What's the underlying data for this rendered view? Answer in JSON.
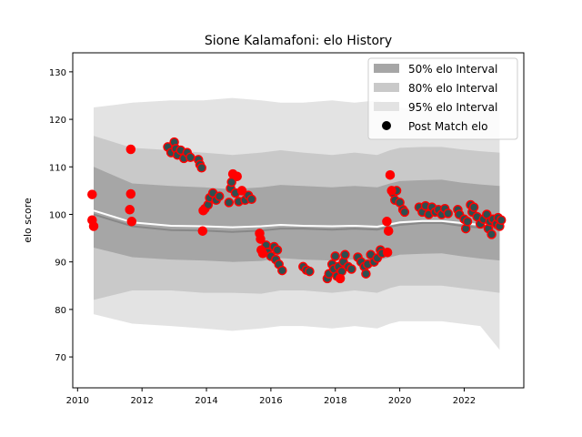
{
  "chart_data": {
    "type": "line",
    "title": "Sione Kalamafoni: elo History",
    "xlabel": "",
    "ylabel": "elo score",
    "xlim": [
      2009.85,
      2023.85
    ],
    "ylim": [
      63.5,
      134
    ],
    "xticks": [
      2010,
      2012,
      2014,
      2016,
      2018,
      2020,
      2022
    ],
    "yticks": [
      70,
      80,
      90,
      100,
      110,
      120,
      130
    ],
    "legend": {
      "position": "top-right",
      "entries": [
        "50% elo Interval",
        "80% elo Interval",
        "95% elo Interval",
        "Post Match elo"
      ]
    },
    "colors": {
      "band50": "#a6a6a6",
      "band80": "#c9c9c9",
      "band95": "#e3e3e3",
      "mean": "#ffffff",
      "median": "#888888",
      "marker_edge": "#ff0000",
      "marker_face": "#2f4f4f"
    },
    "x": [
      2010.5,
      2011.7,
      2012.9,
      2013.9,
      2014.8,
      2015.7,
      2016.3,
      2017.0,
      2017.9,
      2018.6,
      2019.3,
      2019.7,
      2020.0,
      2020.7,
      2021.3,
      2021.9,
      2022.5,
      2023.1
    ],
    "series": [
      {
        "values": [
          100.8,
          98.3,
          97.6,
          97.5,
          97.3,
          97.5,
          97.8,
          97.6,
          97.5,
          97.6,
          97.4,
          97.9,
          98.3,
          98.6,
          98.6,
          98.2,
          97.8,
          97.6
        ]
      },
      {
        "values": [
          100.0,
          97.5,
          96.7,
          96.6,
          96.3,
          96.6,
          97.0,
          97.0,
          96.8,
          97.0,
          96.8,
          97.4,
          97.8,
          98.2,
          98.2,
          97.6,
          97.2,
          96.9
        ]
      },
      {
        "lower": [
          93.0,
          91.0,
          90.5,
          90.3,
          90.0,
          90.2,
          90.8,
          90.5,
          90.3,
          90.5,
          90.3,
          91.0,
          91.5,
          91.7,
          91.8,
          91.2,
          90.7,
          90.3
        ],
        "upper": [
          110.0,
          106.5,
          106.0,
          105.7,
          105.3,
          105.7,
          106.2,
          106.0,
          105.7,
          106.0,
          105.7,
          106.5,
          107.0,
          107.2,
          107.3,
          106.7,
          106.3,
          106.0
        ]
      },
      {
        "lower": [
          82.0,
          84.0,
          84.0,
          83.5,
          83.5,
          83.3,
          84.0,
          84.0,
          83.5,
          84.0,
          83.5,
          84.5,
          85.0,
          85.0,
          85.0,
          84.5,
          84.0,
          83.5
        ],
        "upper": [
          116.5,
          114.0,
          113.5,
          113.0,
          112.5,
          113.0,
          113.5,
          113.0,
          112.5,
          113.0,
          112.5,
          113.5,
          114.0,
          114.2,
          114.2,
          113.7,
          113.3,
          113.0
        ]
      },
      {
        "lower": [
          79.0,
          77.0,
          76.5,
          76.0,
          75.5,
          76.0,
          76.5,
          76.5,
          76.0,
          76.5,
          76.0,
          77.0,
          77.5,
          77.5,
          77.5,
          77.0,
          76.5,
          71.5
        ],
        "upper": [
          122.5,
          123.5,
          124.0,
          124.0,
          124.5,
          124.0,
          123.5,
          123.5,
          124.0,
          123.5,
          124.0,
          123.0,
          122.5,
          122.0,
          122.0,
          122.0,
          122.0,
          122.5
        ]
      }
    ],
    "points": [
      {
        "x": 2010.45,
        "y": 104.2
      },
      {
        "x": 2010.45,
        "y": 98.8
      },
      {
        "x": 2010.5,
        "y": 97.5
      },
      {
        "x": 2011.65,
        "y": 113.7
      },
      {
        "x": 2011.65,
        "y": 104.3
      },
      {
        "x": 2011.62,
        "y": 101.0
      },
      {
        "x": 2011.68,
        "y": 98.5
      },
      {
        "x": 2012.8,
        "y": 114.2
      },
      {
        "x": 2012.9,
        "y": 113.0
      },
      {
        "x": 2013.0,
        "y": 115.2
      },
      {
        "x": 2013.05,
        "y": 113.8
      },
      {
        "x": 2013.1,
        "y": 112.5
      },
      {
        "x": 2013.2,
        "y": 113.5
      },
      {
        "x": 2013.3,
        "y": 111.8
      },
      {
        "x": 2013.4,
        "y": 113.0
      },
      {
        "x": 2013.5,
        "y": 112.0
      },
      {
        "x": 2013.75,
        "y": 111.5
      },
      {
        "x": 2013.8,
        "y": 110.5
      },
      {
        "x": 2013.85,
        "y": 109.8
      },
      {
        "x": 2013.9,
        "y": 100.8
      },
      {
        "x": 2013.95,
        "y": 101.2
      },
      {
        "x": 2013.88,
        "y": 96.5
      },
      {
        "x": 2014.05,
        "y": 102.0
      },
      {
        "x": 2014.1,
        "y": 103.5
      },
      {
        "x": 2014.2,
        "y": 104.5
      },
      {
        "x": 2014.3,
        "y": 103.0
      },
      {
        "x": 2014.4,
        "y": 103.8
      },
      {
        "x": 2014.7,
        "y": 102.5
      },
      {
        "x": 2014.75,
        "y": 105.5
      },
      {
        "x": 2014.78,
        "y": 106.8
      },
      {
        "x": 2014.82,
        "y": 108.5
      },
      {
        "x": 2014.9,
        "y": 104.5
      },
      {
        "x": 2014.95,
        "y": 108.0
      },
      {
        "x": 2015.0,
        "y": 102.7
      },
      {
        "x": 2015.1,
        "y": 105.0
      },
      {
        "x": 2015.2,
        "y": 103.0
      },
      {
        "x": 2015.3,
        "y": 104.0
      },
      {
        "x": 2015.4,
        "y": 103.2
      },
      {
        "x": 2015.65,
        "y": 96.0
      },
      {
        "x": 2015.68,
        "y": 94.8
      },
      {
        "x": 2015.7,
        "y": 92.5
      },
      {
        "x": 2015.75,
        "y": 91.8
      },
      {
        "x": 2015.85,
        "y": 93.5
      },
      {
        "x": 2015.9,
        "y": 92.0
      },
      {
        "x": 2016.0,
        "y": 91.2
      },
      {
        "x": 2016.1,
        "y": 93.2
      },
      {
        "x": 2016.15,
        "y": 90.5
      },
      {
        "x": 2016.2,
        "y": 92.5
      },
      {
        "x": 2016.25,
        "y": 89.5
      },
      {
        "x": 2016.35,
        "y": 88.2
      },
      {
        "x": 2017.0,
        "y": 89.0
      },
      {
        "x": 2017.1,
        "y": 88.3
      },
      {
        "x": 2017.2,
        "y": 88.0
      },
      {
        "x": 2017.75,
        "y": 86.5
      },
      {
        "x": 2017.8,
        "y": 87.5
      },
      {
        "x": 2017.9,
        "y": 89.5
      },
      {
        "x": 2017.95,
        "y": 88.5
      },
      {
        "x": 2018.0,
        "y": 91.2
      },
      {
        "x": 2018.05,
        "y": 87.0
      },
      {
        "x": 2018.1,
        "y": 89.0
      },
      {
        "x": 2018.15,
        "y": 86.5
      },
      {
        "x": 2018.2,
        "y": 88.0
      },
      {
        "x": 2018.25,
        "y": 90.0
      },
      {
        "x": 2018.3,
        "y": 91.5
      },
      {
        "x": 2018.4,
        "y": 89.0
      },
      {
        "x": 2018.5,
        "y": 88.5
      },
      {
        "x": 2018.7,
        "y": 91.0
      },
      {
        "x": 2018.8,
        "y": 90.0
      },
      {
        "x": 2018.9,
        "y": 89.0
      },
      {
        "x": 2018.95,
        "y": 87.5
      },
      {
        "x": 2019.0,
        "y": 89.5
      },
      {
        "x": 2019.1,
        "y": 91.5
      },
      {
        "x": 2019.2,
        "y": 90.0
      },
      {
        "x": 2019.3,
        "y": 90.8
      },
      {
        "x": 2019.4,
        "y": 92.5
      },
      {
        "x": 2019.45,
        "y": 91.8
      },
      {
        "x": 2019.6,
        "y": 98.5
      },
      {
        "x": 2019.62,
        "y": 92.0
      },
      {
        "x": 2019.65,
        "y": 96.5
      },
      {
        "x": 2019.7,
        "y": 108.3
      },
      {
        "x": 2019.75,
        "y": 105.0
      },
      {
        "x": 2019.8,
        "y": 104.5
      },
      {
        "x": 2019.85,
        "y": 103.0
      },
      {
        "x": 2019.9,
        "y": 105.0
      },
      {
        "x": 2020.0,
        "y": 102.5
      },
      {
        "x": 2020.1,
        "y": 101.0
      },
      {
        "x": 2020.15,
        "y": 100.5
      },
      {
        "x": 2020.6,
        "y": 101.5
      },
      {
        "x": 2020.7,
        "y": 100.5
      },
      {
        "x": 2020.8,
        "y": 101.8
      },
      {
        "x": 2020.9,
        "y": 100.0
      },
      {
        "x": 2021.0,
        "y": 101.5
      },
      {
        "x": 2021.1,
        "y": 100.5
      },
      {
        "x": 2021.2,
        "y": 101.0
      },
      {
        "x": 2021.3,
        "y": 100.0
      },
      {
        "x": 2021.4,
        "y": 101.2
      },
      {
        "x": 2021.5,
        "y": 100.2
      },
      {
        "x": 2021.8,
        "y": 101.0
      },
      {
        "x": 2021.85,
        "y": 100.0
      },
      {
        "x": 2022.0,
        "y": 99.0
      },
      {
        "x": 2022.05,
        "y": 97.0
      },
      {
        "x": 2022.1,
        "y": 98.5
      },
      {
        "x": 2022.2,
        "y": 102.0
      },
      {
        "x": 2022.25,
        "y": 100.5
      },
      {
        "x": 2022.3,
        "y": 101.5
      },
      {
        "x": 2022.4,
        "y": 99.5
      },
      {
        "x": 2022.5,
        "y": 98.0
      },
      {
        "x": 2022.6,
        "y": 99.0
      },
      {
        "x": 2022.7,
        "y": 100.0
      },
      {
        "x": 2022.75,
        "y": 97.0
      },
      {
        "x": 2022.8,
        "y": 98.5
      },
      {
        "x": 2022.85,
        "y": 95.8
      },
      {
        "x": 2022.9,
        "y": 99.0
      },
      {
        "x": 2023.0,
        "y": 98.0
      },
      {
        "x": 2023.05,
        "y": 99.3
      },
      {
        "x": 2023.1,
        "y": 97.5
      },
      {
        "x": 2023.15,
        "y": 98.8
      }
    ],
    "points_highlight": [
      {
        "x": 2010.45,
        "y": 104.2
      },
      {
        "x": 2010.45,
        "y": 98.8
      },
      {
        "x": 2010.5,
        "y": 97.5
      },
      {
        "x": 2011.65,
        "y": 113.7
      },
      {
        "x": 2011.65,
        "y": 104.3
      },
      {
        "x": 2011.62,
        "y": 101.0
      },
      {
        "x": 2011.68,
        "y": 98.5
      },
      {
        "x": 2013.9,
        "y": 100.8
      },
      {
        "x": 2013.88,
        "y": 96.5
      },
      {
        "x": 2014.82,
        "y": 108.5
      },
      {
        "x": 2014.95,
        "y": 108.0
      },
      {
        "x": 2015.1,
        "y": 105.0
      },
      {
        "x": 2015.65,
        "y": 96.0
      },
      {
        "x": 2015.68,
        "y": 94.8
      },
      {
        "x": 2015.7,
        "y": 92.5
      },
      {
        "x": 2015.75,
        "y": 91.8
      },
      {
        "x": 2018.15,
        "y": 86.5
      },
      {
        "x": 2019.6,
        "y": 98.5
      },
      {
        "x": 2019.62,
        "y": 92.0
      },
      {
        "x": 2019.65,
        "y": 96.5
      },
      {
        "x": 2019.7,
        "y": 108.3
      },
      {
        "x": 2019.75,
        "y": 105.0
      }
    ]
  }
}
